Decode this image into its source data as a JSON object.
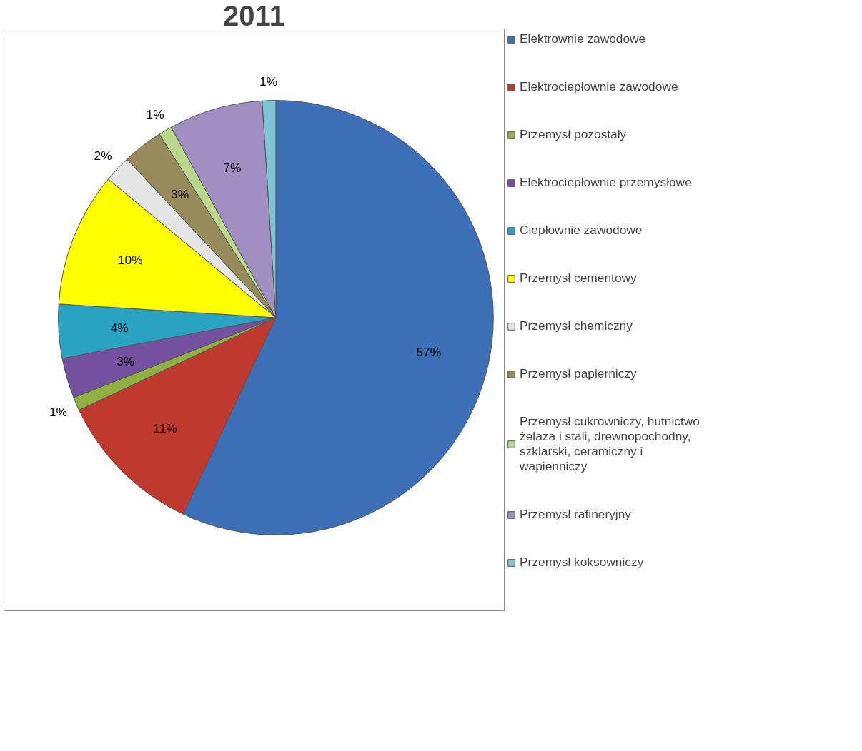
{
  "chart_data": {
    "type": "pie",
    "title": "2011",
    "categories": [
      "Elektrownie zawodowe",
      "Elektrociepłownie zawodowe",
      "Przemysł pozostały",
      "Elektrociepłownie przemysłowe",
      "Ciepłownie zawodowe",
      "Przemysł cementowy",
      "Przemysł chemiczny",
      "Przemysł papierniczy",
      "Przemysł cukrowniczy, hutnictwo żelaza i stali, drewnopochodny, szklarski, ceramiczny i wapienniczy",
      "Przemysł rafineryjny",
      "Przemysł koksowniczy"
    ],
    "values": [
      57,
      11,
      1,
      3,
      4,
      10,
      2,
      3,
      1,
      7,
      1
    ],
    "value_labels": [
      "57%",
      "11%",
      "1%",
      "3%",
      "4%",
      "10%",
      "2%",
      "3%",
      "1%",
      "7%",
      "1%"
    ],
    "colors": [
      "#3d6fb6",
      "#c0392f",
      "#8fb043",
      "#7550a0",
      "#2aa3c2",
      "#ffff00",
      "#e6e6e6",
      "#978b5c",
      "#b9d88c",
      "#a28fc2",
      "#7fc3d9"
    ],
    "legend": "right"
  }
}
